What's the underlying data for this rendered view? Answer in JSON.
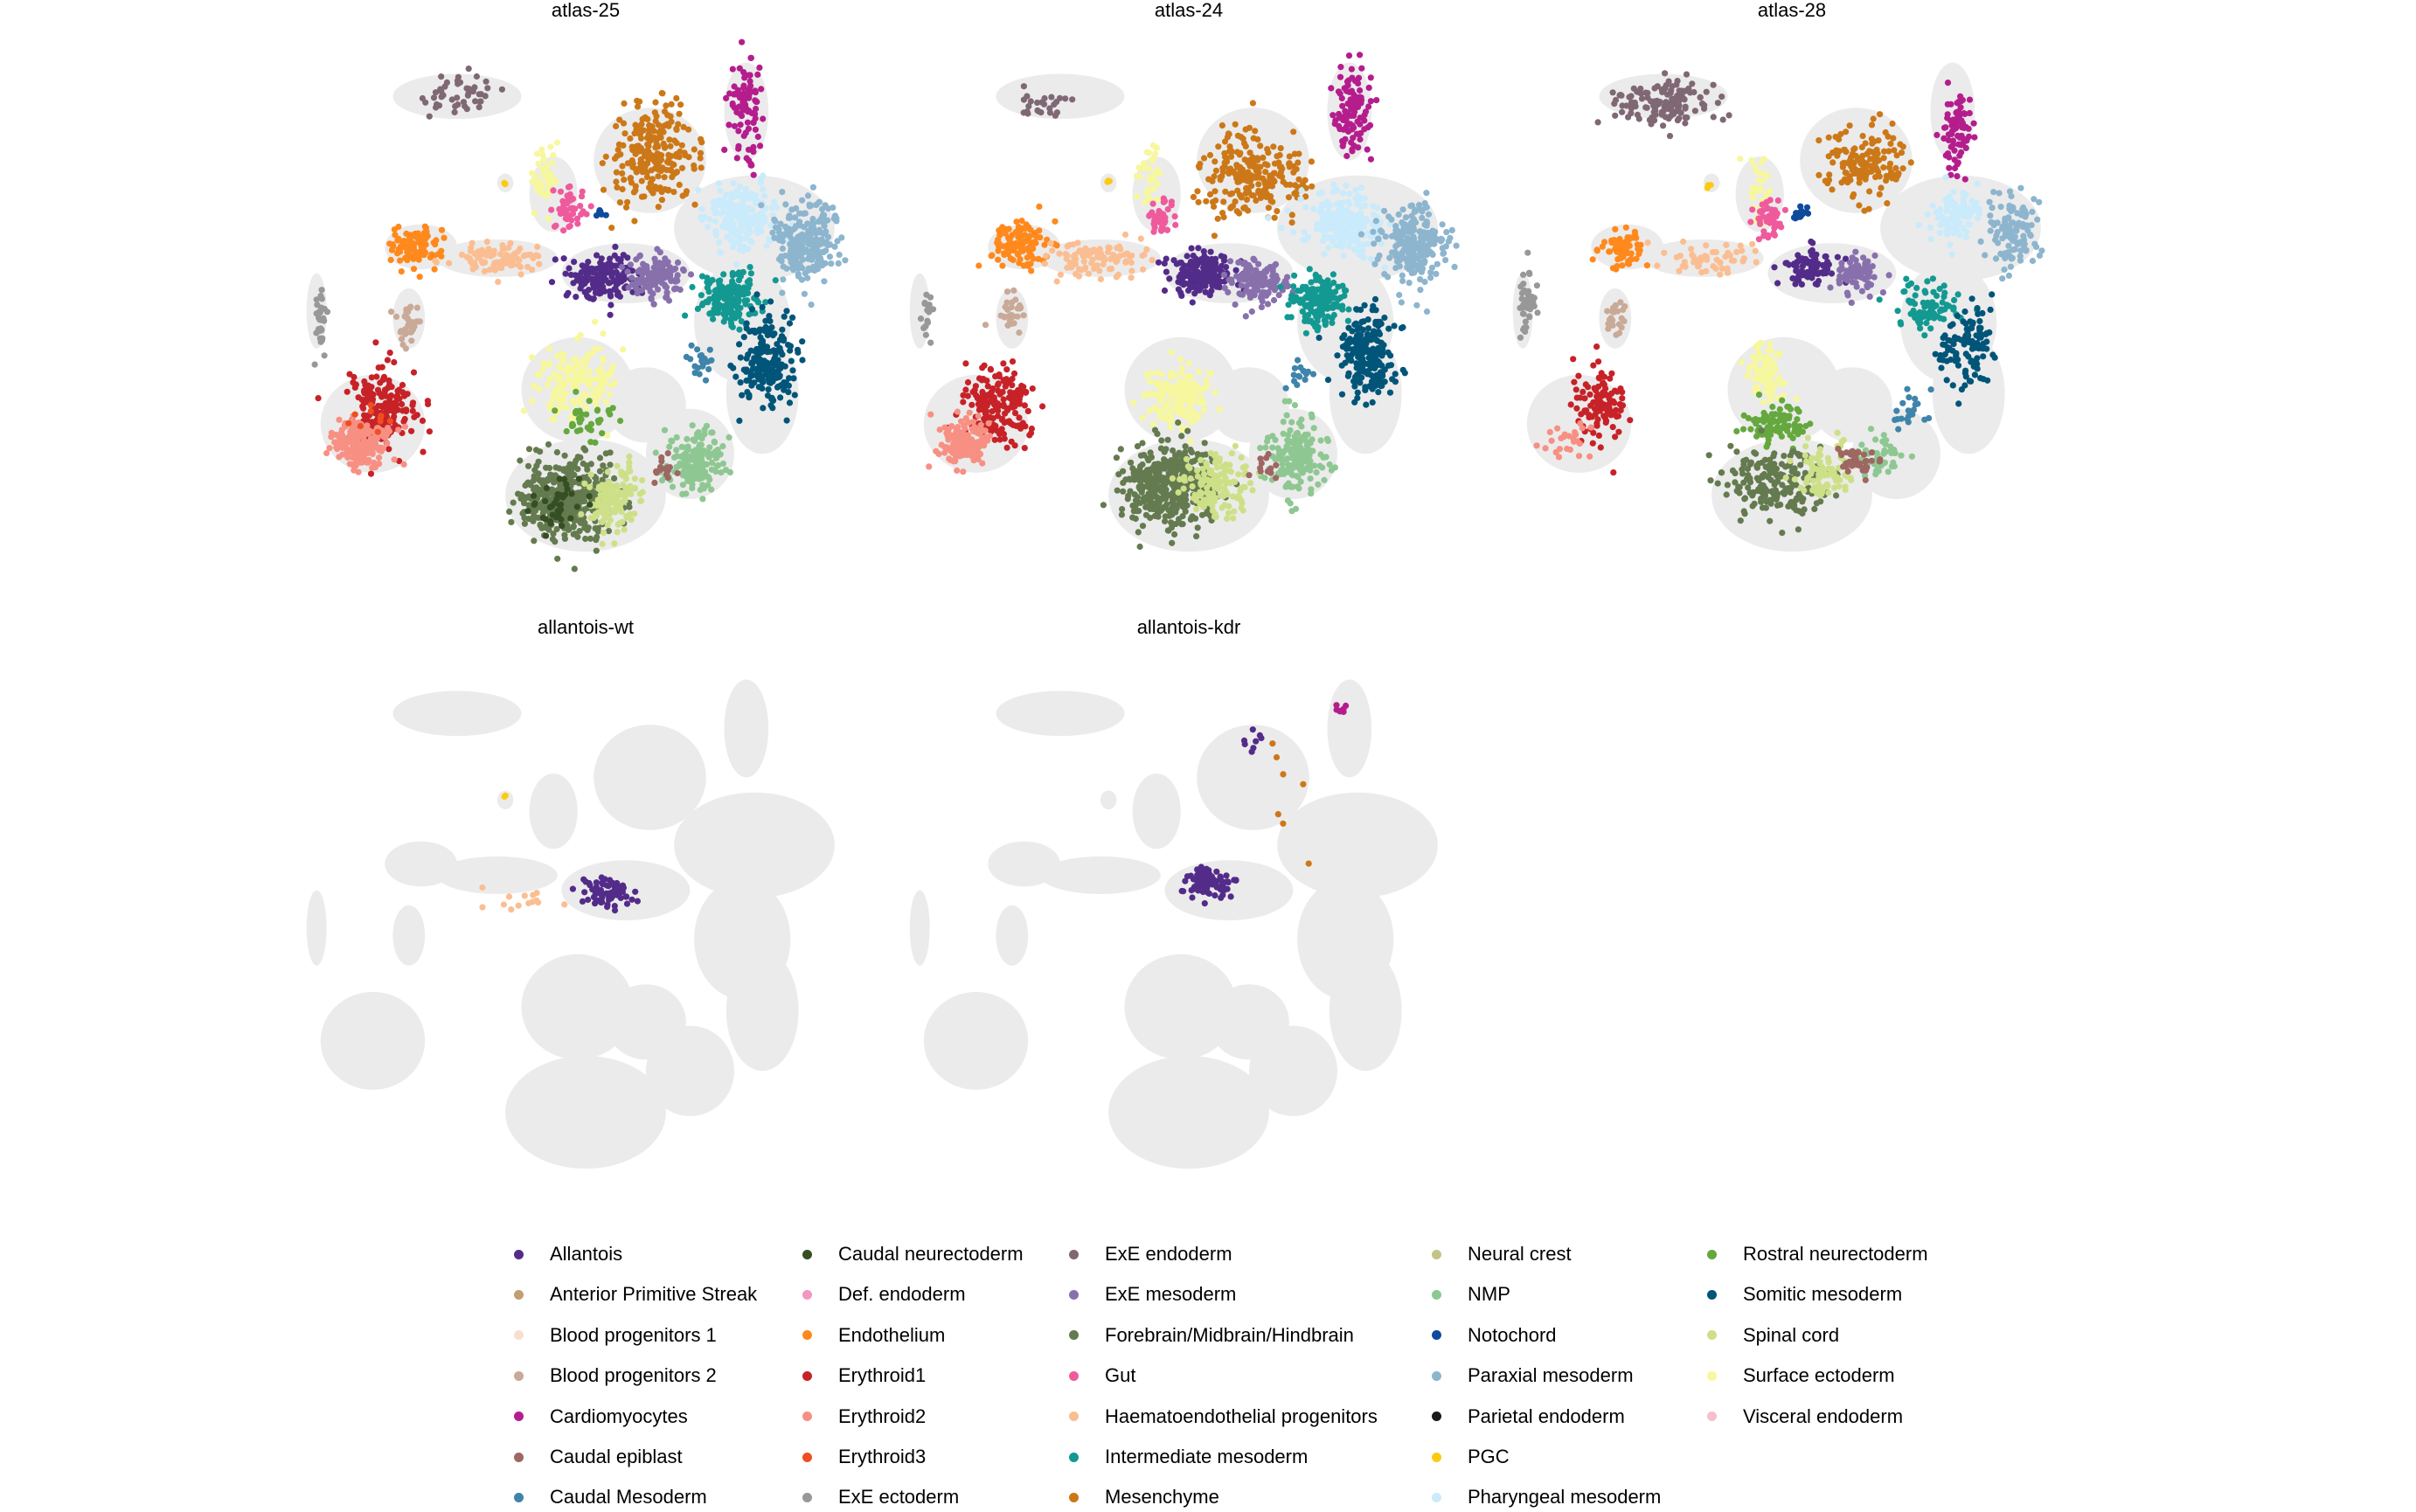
{
  "chart_data": {
    "type": "scatter",
    "description": "UMAP embeddings faceted by sample; background cells in light grey, sample cells coloured by celltype",
    "background_color": "#ebebeb",
    "panels": [
      {
        "title": "atlas-25",
        "clusters": [
          {
            "celltype": "ExE endoderm",
            "x": -3.4,
            "y": 9.2,
            "sx": 1.0,
            "sy": 0.5,
            "n": 45
          },
          {
            "celltype": "ExE ectoderm",
            "x": -6.8,
            "y": 3.4,
            "sx": 0.12,
            "sy": 0.8,
            "n": 30
          },
          {
            "celltype": "Cardiomyocytes",
            "x": 3.8,
            "y": 9.0,
            "sx": 0.35,
            "sy": 1.0,
            "n": 90
          },
          {
            "celltype": "Mesenchyme",
            "x": 1.5,
            "y": 7.6,
            "sx": 0.9,
            "sy": 1.1,
            "n": 220
          },
          {
            "celltype": "Surface ectoderm",
            "x": -1.2,
            "y": 7.2,
            "sx": 0.25,
            "sy": 0.8,
            "n": 40
          },
          {
            "celltype": "PGC",
            "x": -2.2,
            "y": 6.9,
            "sx": 0.05,
            "sy": 0.05,
            "n": 3
          },
          {
            "celltype": "Gut",
            "x": -0.6,
            "y": 6.2,
            "sx": 0.35,
            "sy": 0.45,
            "n": 45
          },
          {
            "celltype": "Notochord",
            "x": 0.2,
            "y": 6.1,
            "sx": 0.1,
            "sy": 0.15,
            "n": 6
          },
          {
            "celltype": "Endothelium",
            "x": -4.5,
            "y": 5.2,
            "sx": 0.55,
            "sy": 0.45,
            "n": 100
          },
          {
            "celltype": "Haematoendothelial progenitors",
            "x": -2.4,
            "y": 4.9,
            "sx": 1.0,
            "sy": 0.35,
            "n": 90
          },
          {
            "celltype": "Blood progenitors 2",
            "x": -4.6,
            "y": 3.2,
            "sx": 0.25,
            "sy": 0.5,
            "n": 30
          },
          {
            "celltype": "Allantois",
            "x": 0.3,
            "y": 4.4,
            "sx": 0.7,
            "sy": 0.5,
            "n": 160
          },
          {
            "celltype": "ExE mesoderm",
            "x": 1.6,
            "y": 4.4,
            "sx": 0.55,
            "sy": 0.5,
            "n": 120
          },
          {
            "celltype": "Pharyngeal mesoderm",
            "x": 3.7,
            "y": 6.0,
            "sx": 0.8,
            "sy": 0.7,
            "n": 200
          },
          {
            "celltype": "Paraxial mesoderm",
            "x": 5.3,
            "y": 5.4,
            "sx": 0.7,
            "sy": 0.9,
            "n": 230
          },
          {
            "celltype": "Intermediate mesoderm",
            "x": 3.4,
            "y": 3.8,
            "sx": 0.6,
            "sy": 0.6,
            "n": 170
          },
          {
            "celltype": "Somitic mesoderm",
            "x": 4.3,
            "y": 2.2,
            "sx": 0.6,
            "sy": 1.0,
            "n": 190
          },
          {
            "celltype": "Caudal Mesoderm",
            "x": 2.6,
            "y": 2.1,
            "sx": 0.25,
            "sy": 0.4,
            "n": 20
          },
          {
            "celltype": "Erythroid1",
            "x": -5.3,
            "y": 0.9,
            "sx": 0.7,
            "sy": 0.9,
            "n": 170
          },
          {
            "celltype": "Erythroid2",
            "x": -5.8,
            "y": 0.0,
            "sx": 0.6,
            "sy": 0.5,
            "n": 170
          },
          {
            "celltype": "Erythroid3",
            "x": -5.6,
            "y": 0.6,
            "sx": 0.4,
            "sy": 0.4,
            "n": 10
          },
          {
            "celltype": "Surface ectoderm",
            "x": -0.4,
            "y": 1.6,
            "sx": 0.8,
            "sy": 0.9,
            "n": 150
          },
          {
            "celltype": "Rostral neurectoderm",
            "x": -0.2,
            "y": 0.6,
            "sx": 0.6,
            "sy": 0.4,
            "n": 35
          },
          {
            "celltype": "NMP",
            "x": 2.5,
            "y": -0.5,
            "sx": 0.6,
            "sy": 0.7,
            "n": 160
          },
          {
            "celltype": "Forebrain/Midbrain/Hindbrain",
            "x": -0.7,
            "y": -1.5,
            "sx": 0.9,
            "sy": 0.9,
            "n": 420
          },
          {
            "celltype": "Spinal cord",
            "x": 0.5,
            "y": -1.5,
            "sx": 0.6,
            "sy": 0.7,
            "n": 130
          },
          {
            "celltype": "Caudal epiblast",
            "x": 1.7,
            "y": -0.7,
            "sx": 0.3,
            "sy": 0.3,
            "n": 15
          },
          {
            "celltype": "Caudal neurectoderm",
            "x": -0.9,
            "y": -1.7,
            "sx": 0.6,
            "sy": 0.6,
            "n": 40
          }
        ]
      },
      {
        "title": "atlas-24",
        "clusters": [
          {
            "celltype": "ExE endoderm",
            "x": -3.8,
            "y": 9.0,
            "sx": 0.7,
            "sy": 0.4,
            "n": 25
          },
          {
            "celltype": "ExE ectoderm",
            "x": -6.7,
            "y": 3.4,
            "sx": 0.12,
            "sy": 0.7,
            "n": 20
          },
          {
            "celltype": "Cardiomyocytes",
            "x": 3.9,
            "y": 8.7,
            "sx": 0.4,
            "sy": 1.0,
            "n": 100
          },
          {
            "celltype": "Mesenchyme",
            "x": 1.4,
            "y": 7.1,
            "sx": 1.0,
            "sy": 1.0,
            "n": 230
          },
          {
            "celltype": "Surface ectoderm",
            "x": -1.2,
            "y": 7.0,
            "sx": 0.25,
            "sy": 0.7,
            "n": 35
          },
          {
            "celltype": "PGC",
            "x": -2.2,
            "y": 6.9,
            "sx": 0.05,
            "sy": 0.05,
            "n": 3
          },
          {
            "celltype": "Gut",
            "x": -0.9,
            "y": 6.0,
            "sx": 0.3,
            "sy": 0.45,
            "n": 40
          },
          {
            "celltype": "Endothelium",
            "x": -4.4,
            "y": 5.3,
            "sx": 0.6,
            "sy": 0.5,
            "n": 110
          },
          {
            "celltype": "Haematoendothelial progenitors",
            "x": -2.5,
            "y": 4.9,
            "sx": 1.0,
            "sy": 0.35,
            "n": 90
          },
          {
            "celltype": "Blood progenitors 2",
            "x": -4.6,
            "y": 3.4,
            "sx": 0.25,
            "sy": 0.5,
            "n": 30
          },
          {
            "celltype": "Allantois",
            "x": 0.1,
            "y": 4.5,
            "sx": 0.7,
            "sy": 0.45,
            "n": 170
          },
          {
            "celltype": "ExE mesoderm",
            "x": 1.5,
            "y": 4.2,
            "sx": 0.6,
            "sy": 0.5,
            "n": 130
          },
          {
            "celltype": "Pharyngeal mesoderm",
            "x": 3.7,
            "y": 5.8,
            "sx": 0.8,
            "sy": 0.7,
            "n": 210
          },
          {
            "celltype": "Paraxial mesoderm",
            "x": 5.4,
            "y": 5.3,
            "sx": 0.7,
            "sy": 0.9,
            "n": 240
          },
          {
            "celltype": "Intermediate mesoderm",
            "x": 3.0,
            "y": 3.8,
            "sx": 0.6,
            "sy": 0.6,
            "n": 160
          },
          {
            "celltype": "Somitic mesoderm",
            "x": 4.3,
            "y": 2.3,
            "sx": 0.6,
            "sy": 1.0,
            "n": 200
          },
          {
            "celltype": "Erythroid1",
            "x": -5.0,
            "y": 1.0,
            "sx": 0.7,
            "sy": 0.9,
            "n": 180
          },
          {
            "celltype": "Erythroid2",
            "x": -5.8,
            "y": 0.0,
            "sx": 0.5,
            "sy": 0.5,
            "n": 160
          },
          {
            "celltype": "Surface ectoderm",
            "x": -0.5,
            "y": 1.2,
            "sx": 0.8,
            "sy": 0.8,
            "n": 150
          },
          {
            "celltype": "NMP",
            "x": 2.5,
            "y": -0.4,
            "sx": 0.6,
            "sy": 0.8,
            "n": 160
          },
          {
            "celltype": "Forebrain/Midbrain/Hindbrain",
            "x": -0.7,
            "y": -1.2,
            "sx": 1.0,
            "sy": 0.9,
            "n": 420
          },
          {
            "celltype": "Spinal cord",
            "x": 0.5,
            "y": -1.2,
            "sx": 0.6,
            "sy": 0.7,
            "n": 140
          },
          {
            "celltype": "Caudal epiblast",
            "x": 1.6,
            "y": -0.6,
            "sx": 0.3,
            "sy": 0.3,
            "n": 12
          },
          {
            "celltype": "Caudal Mesoderm",
            "x": 2.6,
            "y": 1.8,
            "sx": 0.25,
            "sy": 0.4,
            "n": 15
          }
        ]
      },
      {
        "title": "atlas-28",
        "clusters": [
          {
            "celltype": "ExE endoderm",
            "x": -3.5,
            "y": 9.0,
            "sx": 1.0,
            "sy": 0.5,
            "n": 130
          },
          {
            "celltype": "ExE ectoderm",
            "x": -6.8,
            "y": 3.6,
            "sx": 0.15,
            "sy": 0.8,
            "n": 45
          },
          {
            "celltype": "Cardiomyocytes",
            "x": 3.9,
            "y": 8.3,
            "sx": 0.35,
            "sy": 1.0,
            "n": 80
          },
          {
            "celltype": "Mesenchyme",
            "x": 1.6,
            "y": 7.4,
            "sx": 0.9,
            "sy": 0.9,
            "n": 150
          },
          {
            "celltype": "Surface ectoderm",
            "x": -1.0,
            "y": 6.8,
            "sx": 0.25,
            "sy": 0.7,
            "n": 30
          },
          {
            "celltype": "PGC",
            "x": -2.3,
            "y": 6.8,
            "sx": 0.05,
            "sy": 0.05,
            "n": 3
          },
          {
            "celltype": "Gut",
            "x": -0.8,
            "y": 6.0,
            "sx": 0.35,
            "sy": 0.45,
            "n": 45
          },
          {
            "celltype": "Notochord",
            "x": 0.0,
            "y": 6.1,
            "sx": 0.2,
            "sy": 0.15,
            "n": 20
          },
          {
            "celltype": "Endothelium",
            "x": -4.4,
            "y": 5.2,
            "sx": 0.5,
            "sy": 0.4,
            "n": 70
          },
          {
            "celltype": "Haematoendothelial progenitors",
            "x": -2.3,
            "y": 4.9,
            "sx": 1.0,
            "sy": 0.35,
            "n": 55
          },
          {
            "celltype": "Blood progenitors 2",
            "x": -4.6,
            "y": 3.3,
            "sx": 0.25,
            "sy": 0.5,
            "n": 25
          },
          {
            "celltype": "Allantois",
            "x": 0.3,
            "y": 4.6,
            "sx": 0.6,
            "sy": 0.45,
            "n": 80
          },
          {
            "celltype": "ExE mesoderm",
            "x": 1.4,
            "y": 4.5,
            "sx": 0.5,
            "sy": 0.45,
            "n": 70
          },
          {
            "celltype": "Pharyngeal mesoderm",
            "x": 3.9,
            "y": 6.0,
            "sx": 0.6,
            "sy": 0.6,
            "n": 90
          },
          {
            "celltype": "Paraxial mesoderm",
            "x": 5.3,
            "y": 5.6,
            "sx": 0.6,
            "sy": 0.8,
            "n": 110
          },
          {
            "celltype": "Intermediate mesoderm",
            "x": 3.2,
            "y": 3.6,
            "sx": 0.6,
            "sy": 0.6,
            "n": 80
          },
          {
            "celltype": "Somitic mesoderm",
            "x": 4.2,
            "y": 2.6,
            "sx": 0.6,
            "sy": 0.9,
            "n": 110
          },
          {
            "celltype": "Erythroid1",
            "x": -5.0,
            "y": 1.0,
            "sx": 0.6,
            "sy": 0.9,
            "n": 110
          },
          {
            "celltype": "Erythroid2",
            "x": -5.9,
            "y": 0.0,
            "sx": 0.5,
            "sy": 0.4,
            "n": 25
          },
          {
            "celltype": "Surface ectoderm",
            "x": -0.9,
            "y": 1.8,
            "sx": 0.5,
            "sy": 0.7,
            "n": 70
          },
          {
            "celltype": "Rostral neurectoderm",
            "x": -0.6,
            "y": 0.5,
            "sx": 0.6,
            "sy": 0.4,
            "n": 90
          },
          {
            "celltype": "NMP",
            "x": 2.0,
            "y": -0.4,
            "sx": 0.5,
            "sy": 0.5,
            "n": 50
          },
          {
            "celltype": "Forebrain/Midbrain/Hindbrain",
            "x": -0.6,
            "y": -1.0,
            "sx": 1.0,
            "sy": 0.8,
            "n": 200
          },
          {
            "celltype": "Spinal cord",
            "x": 0.6,
            "y": -0.8,
            "sx": 0.6,
            "sy": 0.6,
            "n": 90
          },
          {
            "celltype": "Caudal epiblast",
            "x": 1.4,
            "y": -0.5,
            "sx": 0.4,
            "sy": 0.4,
            "n": 40
          },
          {
            "celltype": "Caudal Mesoderm",
            "x": 2.8,
            "y": 0.8,
            "sx": 0.4,
            "sy": 0.5,
            "n": 20
          }
        ]
      },
      {
        "title": "allantois-wt",
        "clusters": [
          {
            "celltype": "Allantois",
            "x": 0.3,
            "y": 4.4,
            "sx": 0.6,
            "sy": 0.35,
            "n": 70
          },
          {
            "celltype": "Haematoendothelial progenitors",
            "x": -1.7,
            "y": 4.2,
            "sx": 0.9,
            "sy": 0.25,
            "n": 14
          },
          {
            "celltype": "PGC",
            "x": -2.2,
            "y": 7.0,
            "sx": 0.05,
            "sy": 0.05,
            "n": 2
          }
        ]
      },
      {
        "title": "allantois-kdr",
        "clusters": [
          {
            "celltype": "Allantois",
            "x": 0.3,
            "y": 4.7,
            "sx": 0.5,
            "sy": 0.35,
            "n": 80
          },
          {
            "celltype": "Allantois",
            "x": 1.5,
            "y": 8.4,
            "sx": 0.3,
            "sy": 0.4,
            "n": 8
          },
          {
            "celltype": "Cardiomyocytes",
            "x": 3.6,
            "y": 9.3,
            "sx": 0.15,
            "sy": 0.12,
            "n": 8
          },
          {
            "celltype": "Mesenchyme",
            "x": 2.0,
            "y": 7.0,
            "sx": 1.5,
            "sy": 1.5,
            "n": 7
          }
        ]
      }
    ],
    "legend": {
      "position": "bottom",
      "columns": 5,
      "items": [
        {
          "label": "Allantois",
          "color": "#532c8a"
        },
        {
          "label": "Anterior Primitive Streak",
          "color": "#c19f70"
        },
        {
          "label": "Blood progenitors 1",
          "color": "#f9decf"
        },
        {
          "label": "Blood progenitors 2",
          "color": "#c9a997"
        },
        {
          "label": "Cardiomyocytes",
          "color": "#b51d8d"
        },
        {
          "label": "Caudal epiblast",
          "color": "#9e6762"
        },
        {
          "label": "Caudal Mesoderm",
          "color": "#3f84aa"
        },
        {
          "label": "Caudal neurectoderm",
          "color": "#354e23"
        },
        {
          "label": "Def. endoderm",
          "color": "#f397c0"
        },
        {
          "label": "Endothelium",
          "color": "#ff891c"
        },
        {
          "label": "Erythroid1",
          "color": "#c72228"
        },
        {
          "label": "Erythroid2",
          "color": "#f79083"
        },
        {
          "label": "Erythroid3",
          "color": "#ef4e22"
        },
        {
          "label": "ExE ectoderm",
          "color": "#989898"
        },
        {
          "label": "ExE endoderm",
          "color": "#7f6874"
        },
        {
          "label": "ExE mesoderm",
          "color": "#8870ad"
        },
        {
          "label": "Forebrain/Midbrain/Hindbrain",
          "color": "#647a4f"
        },
        {
          "label": "Gut",
          "color": "#ef5a9d"
        },
        {
          "label": "Haematoendothelial progenitors",
          "color": "#fbbe92"
        },
        {
          "label": "Intermediate mesoderm",
          "color": "#139992"
        },
        {
          "label": "Mesenchyme",
          "color": "#cc7818"
        },
        {
          "label": "Neural crest",
          "color": "#c3c388"
        },
        {
          "label": "NMP",
          "color": "#8ec792"
        },
        {
          "label": "Notochord",
          "color": "#0f4a9c"
        },
        {
          "label": "Paraxial mesoderm",
          "color": "#8db5ce"
        },
        {
          "label": "Parietal endoderm",
          "color": "#1a1a1a"
        },
        {
          "label": "PGC",
          "color": "#facb12"
        },
        {
          "label": "Pharyngeal mesoderm",
          "color": "#c9ebfb"
        },
        {
          "label": "Rostral neurectoderm",
          "color": "#65a83e"
        },
        {
          "label": "Somitic mesoderm",
          "color": "#005579"
        },
        {
          "label": "Spinal cord",
          "color": "#cde088"
        },
        {
          "label": "Surface ectoderm",
          "color": "#f7f79e"
        },
        {
          "label": "Visceral endoderm",
          "color": "#f6bfcb"
        }
      ]
    }
  }
}
